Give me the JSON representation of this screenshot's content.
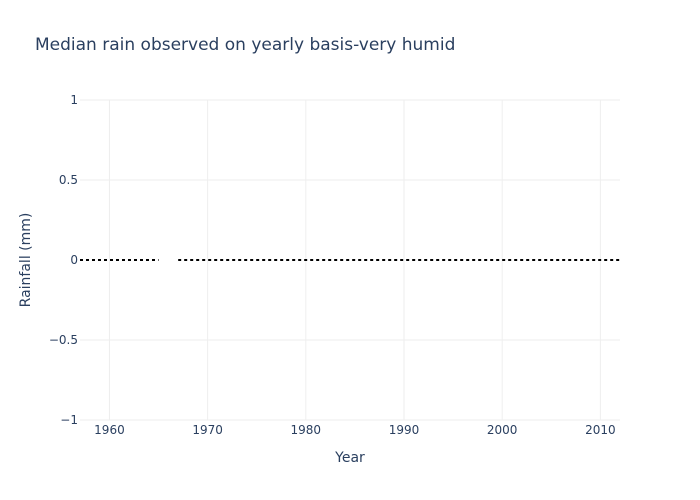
{
  "chart_data": {
    "type": "line",
    "title": "Median rain observed on yearly basis-very humid",
    "xlabel": "Year",
    "ylabel": "Rainfall (mm)",
    "xlim": [
      1957,
      2012
    ],
    "ylim": [
      -1,
      1
    ],
    "x_ticks": [
      1960,
      1970,
      1980,
      1990,
      2000,
      2010
    ],
    "y_ticks": [
      1,
      0.5,
      0,
      -0.5,
      -1
    ],
    "y_tick_labels": [
      "1",
      "0.5",
      "0",
      "−0.5",
      "−1"
    ],
    "grid": true,
    "series": [
      {
        "color": "#000000",
        "line_style": "dot",
        "x": [
          1957,
          1958,
          1959,
          1960,
          1961,
          1962,
          1963,
          1964,
          1965,
          1966,
          1967,
          1968,
          1969,
          1970,
          1971,
          1972,
          1973,
          1974,
          1975,
          1976,
          1977,
          1978,
          1979,
          1980,
          1981,
          1982,
          1983,
          1984,
          1985,
          1986,
          1987,
          1988,
          1989,
          1990,
          1991,
          1992,
          1993,
          1994,
          1995,
          1996,
          1997,
          1998,
          1999,
          2000,
          2001,
          2002,
          2003,
          2004,
          2005,
          2006,
          2007,
          2008,
          2009,
          2010,
          2011,
          2012
        ],
        "y": [
          0,
          0,
          0,
          0,
          0,
          0,
          0,
          0,
          0,
          null,
          0,
          0,
          0,
          0,
          0,
          0,
          0,
          0,
          0,
          0,
          0,
          0,
          0,
          0,
          0,
          0,
          0,
          0,
          0,
          0,
          0,
          0,
          0,
          0,
          0,
          0,
          0,
          0,
          0,
          0,
          0,
          0,
          0,
          0,
          0,
          0,
          0,
          0,
          0,
          0,
          0,
          0,
          0,
          0,
          0,
          0
        ]
      }
    ]
  }
}
